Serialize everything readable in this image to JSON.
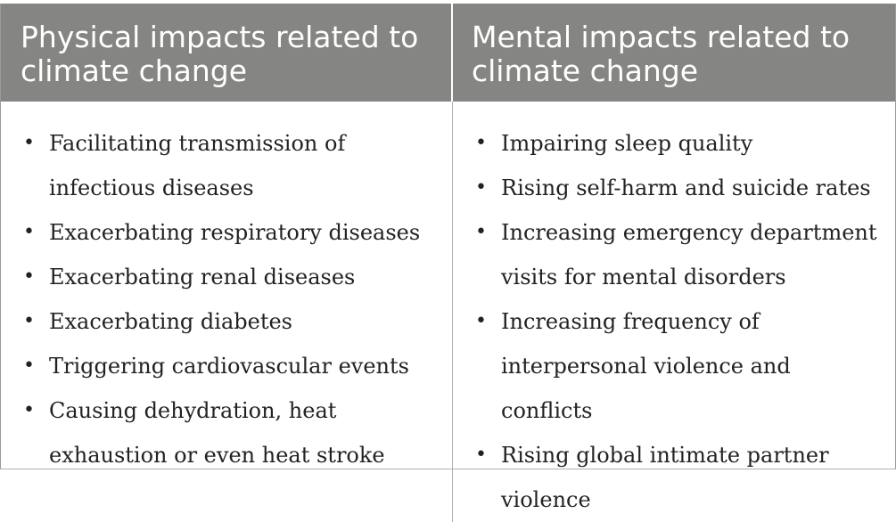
{
  "table": {
    "columns": [
      {
        "header": "Physical impacts related to climate change",
        "items": [
          "Facilitating transmission of infectious diseases",
          "Exacerbating respiratory diseases",
          "Exacerbating renal diseases",
          "Exacerbating diabetes",
          "Triggering cardiovascular events",
          "Causing dehydration, heat exhaustion or even heat stroke"
        ]
      },
      {
        "header": "Mental impacts related to climate change",
        "items": [
          "Impairing sleep quality",
          "Rising self-harm and suicide rates",
          "Increasing emergency department visits for mental disorders",
          "Increasing frequency of interpersonal violence and conflicts",
          "Rising global intimate partner violence"
        ]
      }
    ],
    "bullet_symbol": "•",
    "colors": {
      "header_bg": "#858683",
      "header_text": "#ffffff",
      "body_text": "#222222",
      "border": "#b0b0b0"
    }
  }
}
